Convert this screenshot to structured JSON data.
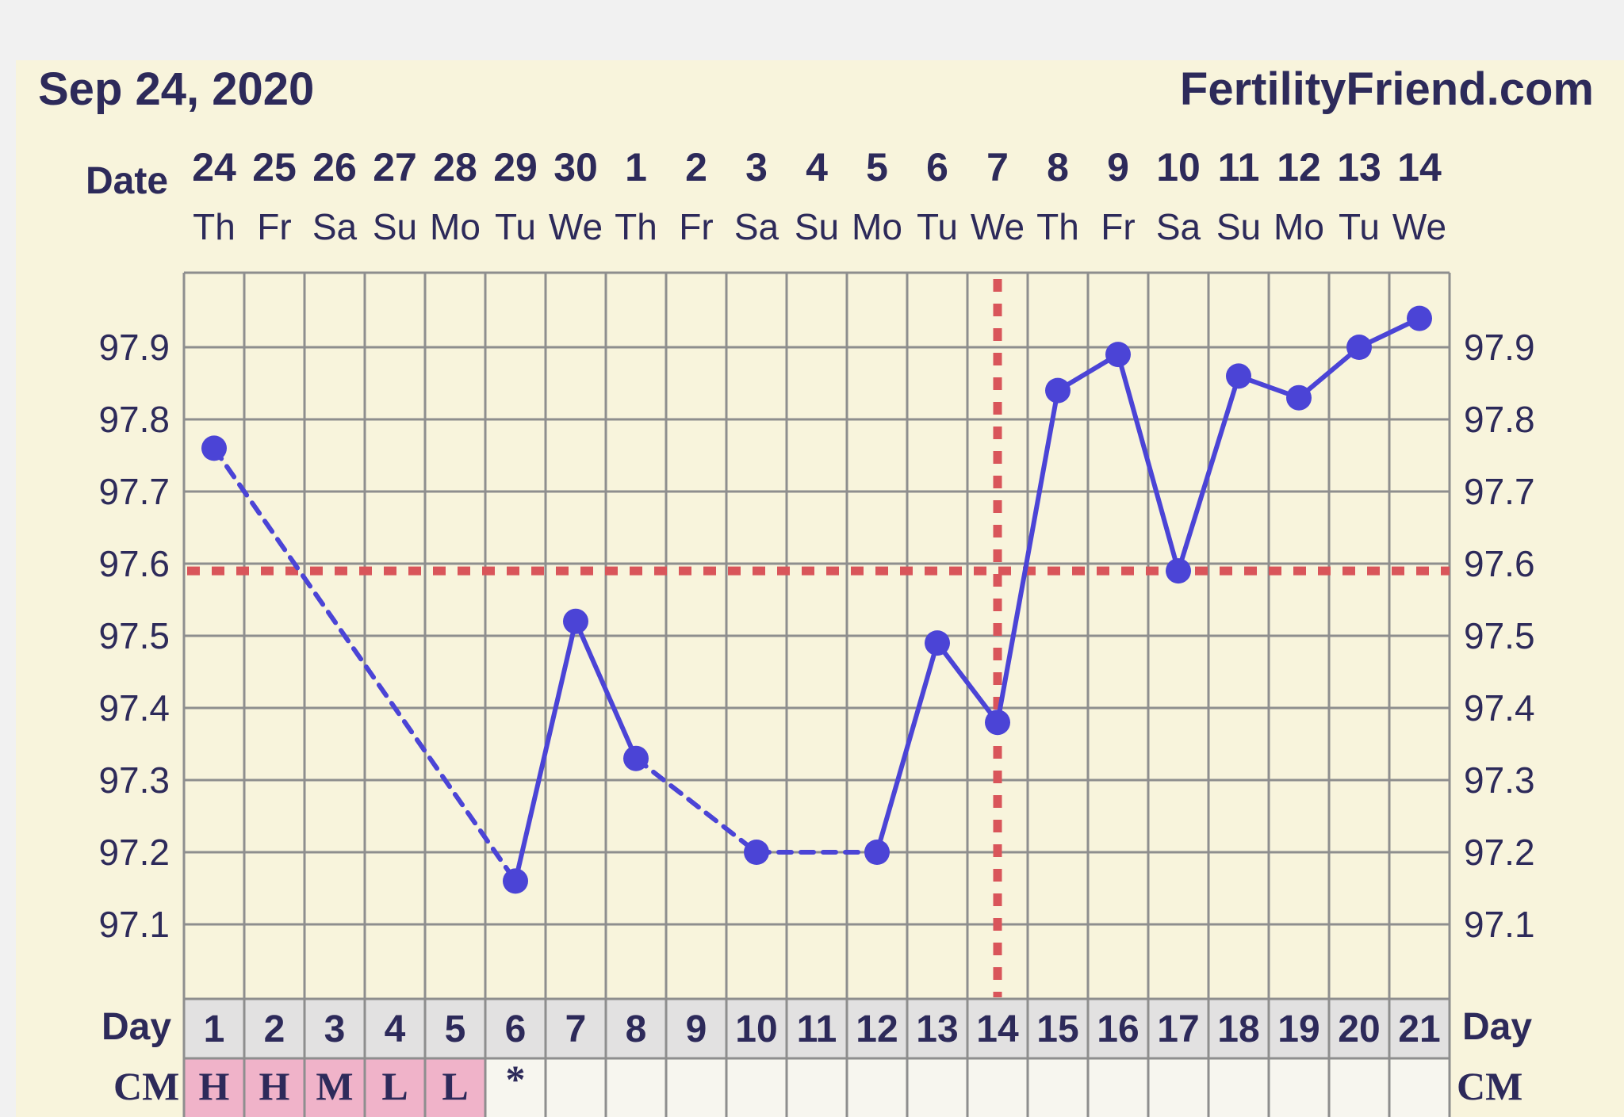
{
  "header": {
    "date": "Sep 24, 2020",
    "brand": "FertilityFriend.com"
  },
  "colors": {
    "line": "#4b44d6",
    "coverline": "#d9555a",
    "grid": "#8e8e8e",
    "panel": "#f8f4dc",
    "cm_fill": "#f0b3c9",
    "day_row": "#e2e1e1"
  },
  "chart_data": {
    "type": "line",
    "row_labels": {
      "date": "Date",
      "day": "Day",
      "cm": "CM"
    },
    "dates": [
      "24",
      "25",
      "26",
      "27",
      "28",
      "29",
      "30",
      "1",
      "2",
      "3",
      "4",
      "5",
      "6",
      "7",
      "8",
      "9",
      "10",
      "11",
      "12",
      "13",
      "14"
    ],
    "weekdays": [
      "Th",
      "Fr",
      "Sa",
      "Su",
      "Mo",
      "Tu",
      "We",
      "Th",
      "Fr",
      "Sa",
      "Su",
      "Mo",
      "Tu",
      "We",
      "Th",
      "Fr",
      "Sa",
      "Su",
      "Mo",
      "Tu",
      "We"
    ],
    "days": [
      "1",
      "2",
      "3",
      "4",
      "5",
      "6",
      "7",
      "8",
      "9",
      "10",
      "11",
      "12",
      "13",
      "14",
      "15",
      "16",
      "17",
      "18",
      "19",
      "20",
      "21"
    ],
    "cm": [
      "H",
      "H",
      "M",
      "L",
      "L",
      "*",
      "",
      "",
      "",
      "",
      "",
      "",
      "",
      "",
      "",
      "",
      "",
      "",
      "",
      "",
      ""
    ],
    "cm_highlight": [
      true,
      true,
      true,
      true,
      true,
      false,
      false,
      false,
      false,
      false,
      false,
      false,
      false,
      false,
      false,
      false,
      false,
      false,
      false,
      false,
      false
    ],
    "y_ticks": [
      "97.1",
      "97.2",
      "97.3",
      "97.4",
      "97.5",
      "97.6",
      "97.7",
      "97.8",
      "97.9"
    ],
    "ylim": [
      97.0,
      98.0
    ],
    "coverline": 97.59,
    "ovulation_day": 14,
    "points": [
      {
        "day": 1,
        "temp": 97.76
      },
      {
        "day": 6,
        "temp": 97.16
      },
      {
        "day": 7,
        "temp": 97.52
      },
      {
        "day": 8,
        "temp": 97.33
      },
      {
        "day": 10,
        "temp": 97.2
      },
      {
        "day": 12,
        "temp": 97.2
      },
      {
        "day": 13,
        "temp": 97.49
      },
      {
        "day": 14,
        "temp": 97.38
      },
      {
        "day": 15,
        "temp": 97.84
      },
      {
        "day": 16,
        "temp": 97.89
      },
      {
        "day": 17,
        "temp": 97.59
      },
      {
        "day": 18,
        "temp": 97.86
      },
      {
        "day": 19,
        "temp": 97.83
      },
      {
        "day": 20,
        "temp": 97.9
      },
      {
        "day": 21,
        "temp": 97.94
      }
    ],
    "segments": [
      {
        "from": 1,
        "to": 6,
        "style": "dashed"
      },
      {
        "from": 6,
        "to": 7,
        "style": "solid"
      },
      {
        "from": 7,
        "to": 8,
        "style": "solid"
      },
      {
        "from": 8,
        "to": 10,
        "style": "dashed"
      },
      {
        "from": 10,
        "to": 12,
        "style": "dashed"
      },
      {
        "from": 12,
        "to": 13,
        "style": "solid"
      },
      {
        "from": 13,
        "to": 14,
        "style": "solid"
      },
      {
        "from": 14,
        "to": 15,
        "style": "solid"
      },
      {
        "from": 15,
        "to": 16,
        "style": "solid"
      },
      {
        "from": 16,
        "to": 17,
        "style": "solid"
      },
      {
        "from": 17,
        "to": 18,
        "style": "solid"
      },
      {
        "from": 18,
        "to": 19,
        "style": "solid"
      },
      {
        "from": 19,
        "to": 20,
        "style": "solid"
      },
      {
        "from": 20,
        "to": 21,
        "style": "solid"
      }
    ]
  }
}
